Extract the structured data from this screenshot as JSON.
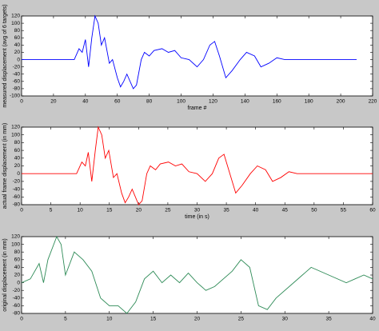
{
  "chart_data": [
    {
      "type": "line",
      "x_label": "frame #",
      "y_label": "measured displacement (avg of 6 targets)",
      "x": [
        0,
        33,
        36,
        38,
        40,
        42,
        44,
        46,
        48,
        50,
        52,
        55,
        57,
        60,
        62,
        64,
        66,
        70,
        72,
        75,
        77,
        80,
        83,
        88,
        92,
        96,
        100,
        105,
        110,
        114,
        118,
        121,
        124,
        128,
        132,
        137,
        141,
        146,
        150,
        155,
        160,
        165,
        210
      ],
      "series": [
        {
          "name": "measured",
          "color": "#0000ff",
          "values": [
            0,
            0,
            30,
            20,
            55,
            -20,
            60,
            120,
            100,
            40,
            60,
            -10,
            0,
            -50,
            -75,
            -60,
            -40,
            -80,
            -70,
            0,
            20,
            10,
            25,
            30,
            20,
            25,
            5,
            0,
            -20,
            0,
            40,
            50,
            10,
            -50,
            -30,
            0,
            20,
            10,
            -20,
            -10,
            5,
            0,
            0
          ]
        }
      ],
      "xlim": [
        0,
        220
      ],
      "xticks": [
        0,
        20,
        40,
        60,
        80,
        100,
        120,
        140,
        160,
        180,
        200,
        220
      ],
      "ylim": [
        -100,
        120
      ],
      "yticks": [
        -100,
        -80,
        -60,
        -40,
        -20,
        0,
        20,
        40,
        60,
        80,
        100,
        120
      ]
    },
    {
      "type": "line",
      "x_label": "time (in s)",
      "y_label": "actual frame displacement (in mm)",
      "x": [
        0,
        9.4,
        10.3,
        10.9,
        11.4,
        12,
        12.6,
        13.1,
        13.7,
        14.3,
        14.9,
        15.7,
        16.3,
        17.1,
        17.7,
        18.3,
        18.9,
        20,
        20.6,
        21.4,
        22,
        22.9,
        23.7,
        25.1,
        26.3,
        27.4,
        28.6,
        30,
        31.4,
        32.6,
        33.7,
        34.6,
        35.4,
        36.6,
        37.7,
        39.1,
        40.3,
        41.7,
        42.9,
        44.3,
        45.7,
        47.1,
        60
      ],
      "series": [
        {
          "name": "actual",
          "color": "#ff0000",
          "values": [
            0,
            0,
            30,
            20,
            55,
            -20,
            60,
            120,
            100,
            40,
            60,
            -10,
            0,
            -50,
            -75,
            -60,
            -40,
            -80,
            -70,
            0,
            20,
            10,
            25,
            30,
            20,
            25,
            5,
            0,
            -20,
            0,
            40,
            50,
            10,
            -50,
            -30,
            0,
            20,
            10,
            -20,
            -10,
            5,
            0,
            0
          ]
        }
      ],
      "xlim": [
        0,
        60
      ],
      "xticks": [
        0,
        5,
        10,
        15,
        20,
        25,
        30,
        35,
        40,
        45,
        50,
        55,
        60
      ],
      "ylim": [
        -80,
        120
      ],
      "yticks": [
        -80,
        -60,
        -40,
        -20,
        0,
        20,
        40,
        60,
        80,
        100,
        120
      ]
    },
    {
      "type": "line",
      "y_label": "original displacement (in mm)",
      "x": [
        0,
        1,
        2,
        2.5,
        3,
        4,
        4.5,
        5,
        6,
        7,
        8,
        9,
        10,
        11,
        12,
        13,
        14,
        15,
        16,
        17,
        18,
        19,
        20,
        21,
        22,
        24,
        25,
        26,
        27,
        28,
        29,
        31,
        32,
        33,
        35,
        37,
        38,
        39,
        40
      ],
      "series": [
        {
          "name": "original",
          "color": "#2e8b57",
          "values": [
            0,
            10,
            50,
            0,
            60,
            120,
            100,
            20,
            80,
            60,
            30,
            -40,
            -60,
            -60,
            -80,
            -50,
            10,
            30,
            0,
            20,
            0,
            25,
            0,
            -20,
            -10,
            30,
            60,
            40,
            -60,
            -70,
            -40,
            0,
            20,
            40,
            20,
            0,
            10,
            20,
            10
          ]
        }
      ],
      "xlim": [
        0,
        40
      ],
      "xticks": [
        0,
        5,
        10,
        15,
        20,
        25,
        30,
        35,
        40
      ],
      "ylim": [
        -80,
        120
      ],
      "yticks": [
        -80,
        -60,
        -40,
        -20,
        0,
        20,
        40,
        60,
        80,
        100,
        120
      ]
    }
  ]
}
